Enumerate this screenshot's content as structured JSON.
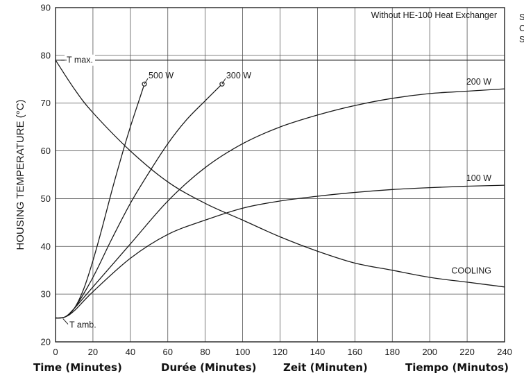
{
  "chart_data": {
    "type": "line",
    "ylabel": "HOUSING TEMPERATURE (°C)",
    "xlim": [
      0,
      240
    ],
    "ylim": [
      20,
      90
    ],
    "x_ticks": [
      0,
      20,
      40,
      60,
      80,
      100,
      120,
      140,
      160,
      180,
      200,
      220,
      240
    ],
    "y_ticks": [
      20,
      30,
      40,
      50,
      60,
      70,
      80,
      90
    ],
    "grid": true,
    "box_label": "Without HE-100 Heat Exchanger",
    "reference_lines": [
      {
        "name": "T max.",
        "y": 79
      },
      {
        "name": "T amb.",
        "y": 25
      }
    ],
    "series": [
      {
        "name": "500 W",
        "x": [
          0,
          5,
          10,
          15,
          20,
          25,
          30,
          35,
          40,
          45,
          47.5
        ],
        "y": [
          25,
          25.2,
          27,
          31,
          37,
          44,
          51.5,
          58.5,
          65,
          71,
          74
        ]
      },
      {
        "name": "300 W",
        "x": [
          0,
          5,
          10,
          20,
          30,
          40,
          50,
          60,
          70,
          80,
          89
        ],
        "y": [
          25,
          25.2,
          27,
          33.5,
          41.5,
          49,
          55.5,
          61.5,
          66.5,
          70.5,
          74
        ]
      },
      {
        "name": "200 W",
        "x": [
          0,
          5,
          10,
          20,
          40,
          60,
          80,
          100,
          120,
          140,
          160,
          180,
          200,
          220,
          240
        ],
        "y": [
          25,
          25.2,
          27,
          31.5,
          40.5,
          49.5,
          56.5,
          61.5,
          65,
          67.5,
          69.5,
          71,
          72,
          72.5,
          73
        ]
      },
      {
        "name": "100 W",
        "x": [
          0,
          5,
          10,
          20,
          40,
          60,
          80,
          100,
          120,
          140,
          160,
          180,
          200,
          220,
          240
        ],
        "y": [
          25,
          25.2,
          26.5,
          30.5,
          37.5,
          42.5,
          45.5,
          48,
          49.5,
          50.5,
          51.3,
          51.9,
          52.3,
          52.6,
          52.8
        ]
      },
      {
        "name": "COOLING",
        "x": [
          0,
          10,
          20,
          40,
          60,
          80,
          100,
          120,
          140,
          160,
          180,
          200,
          220,
          240
        ],
        "y": [
          79,
          73,
          68,
          60,
          53.5,
          49,
          45.5,
          42,
          39,
          36.5,
          35,
          33.5,
          32.5,
          31.5
        ]
      }
    ]
  },
  "footer": {
    "labels": [
      "Time (Minutes)",
      "Durée (Minutes)",
      "Zeit (Minuten)",
      "Tiempo (Minutos)"
    ]
  },
  "side_text": [
    "S",
    "C",
    "S"
  ]
}
